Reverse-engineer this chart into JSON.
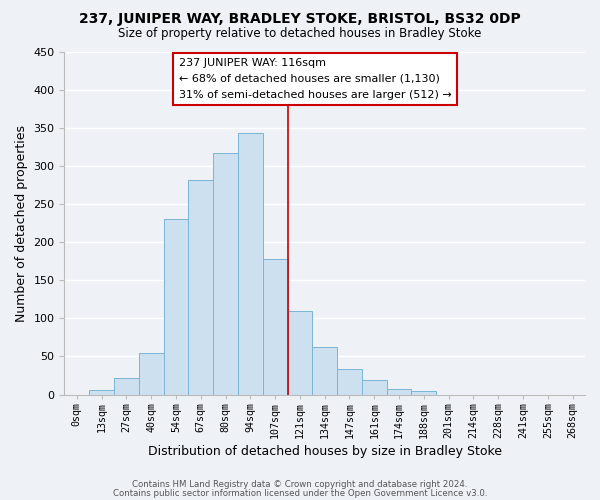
{
  "title1": "237, JUNIPER WAY, BRADLEY STOKE, BRISTOL, BS32 0DP",
  "title2": "Size of property relative to detached houses in Bradley Stoke",
  "xlabel": "Distribution of detached houses by size in Bradley Stoke",
  "ylabel": "Number of detached properties",
  "footer1": "Contains HM Land Registry data © Crown copyright and database right 2024.",
  "footer2": "Contains public sector information licensed under the Open Government Licence v3.0.",
  "bar_labels": [
    "0sqm",
    "13sqm",
    "27sqm",
    "40sqm",
    "54sqm",
    "67sqm",
    "80sqm",
    "94sqm",
    "107sqm",
    "121sqm",
    "134sqm",
    "147sqm",
    "161sqm",
    "174sqm",
    "188sqm",
    "201sqm",
    "214sqm",
    "228sqm",
    "241sqm",
    "255sqm",
    "268sqm"
  ],
  "bar_values": [
    0,
    6,
    22,
    55,
    230,
    281,
    317,
    343,
    178,
    110,
    62,
    33,
    19,
    8,
    5,
    0,
    0,
    0,
    0,
    0,
    0
  ],
  "bar_color": "#cce0f0",
  "bar_edge_color": "#7ab4d4",
  "highlight_bar_index": 8,
  "highlight_color": "#cc0000",
  "ylim": [
    0,
    450
  ],
  "yticks": [
    0,
    50,
    100,
    150,
    200,
    250,
    300,
    350,
    400,
    450
  ],
  "annotation_title": "237 JUNIPER WAY: 116sqm",
  "annotation_line1": "← 68% of detached houses are smaller (1,130)",
  "annotation_line2": "31% of semi-detached houses are larger (512) →",
  "bg_color": "#eef2f7",
  "grid_color": "#ffffff"
}
